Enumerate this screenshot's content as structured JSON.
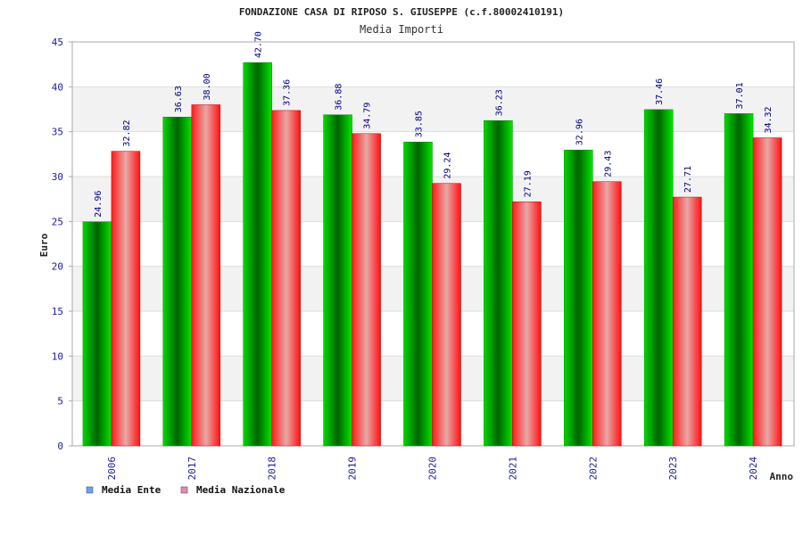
{
  "chart_data": {
    "type": "bar",
    "title": "FONDAZIONE CASA DI RIPOSO S. GIUSEPPE (c.f.80002410191)",
    "subtitle": "Media Importi",
    "xlabel": "Anno",
    "ylabel": "Euro",
    "ylim": [
      0,
      45
    ],
    "yticks": [
      0,
      5,
      10,
      15,
      20,
      25,
      30,
      35,
      40,
      45
    ],
    "categories": [
      "2006",
      "2017",
      "2018",
      "2019",
      "2020",
      "2021",
      "2022",
      "2023",
      "2024"
    ],
    "series": [
      {
        "name": "Media Ente",
        "values": [
          24.96,
          36.63,
          42.7,
          36.88,
          33.85,
          36.23,
          32.96,
          37.46,
          37.01
        ],
        "color": "#00cc00"
      },
      {
        "name": "Media Nazionale",
        "values": [
          32.82,
          38.0,
          37.36,
          34.79,
          29.24,
          27.19,
          29.43,
          27.71,
          34.32
        ],
        "color": "#ff1a1a"
      }
    ],
    "grid": true,
    "legend": {
      "position": "bottom-left",
      "entries": [
        {
          "label": "Media Ente",
          "color": "#6aa6e8"
        },
        {
          "label": "Media Nazionale",
          "color": "#e48ab4"
        }
      ]
    },
    "colors": {
      "band_light": "#ffffff",
      "band_dark": "#f2f2f2",
      "grid": "#dddddd",
      "axis": "#aaaaaa",
      "tick_text": "#1a1aa0",
      "value_text": "#000080"
    }
  }
}
